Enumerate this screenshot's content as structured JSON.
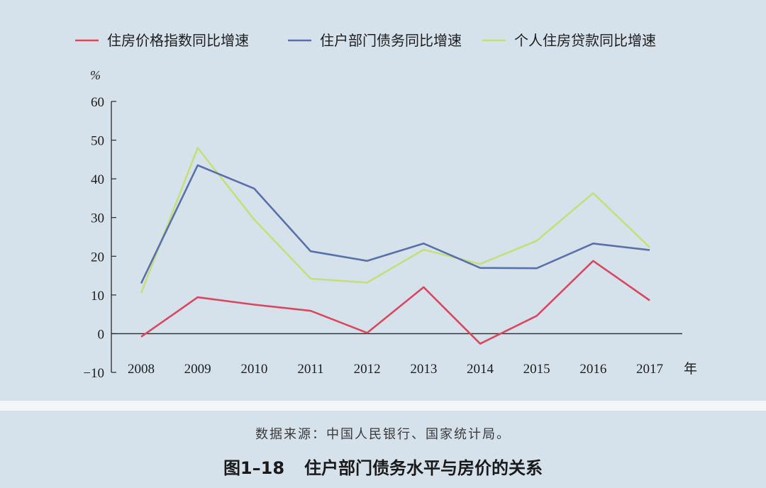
{
  "chart_data": {
    "type": "line",
    "x": [
      "2008",
      "2009",
      "2010",
      "2011",
      "2012",
      "2013",
      "2014",
      "2015",
      "2016",
      "2017"
    ],
    "y_unit": "%",
    "x_unit": "年",
    "ylim": [
      -10,
      60
    ],
    "yticks": [
      "60",
      "50",
      "40",
      "30",
      "20",
      "10",
      "0",
      "−10"
    ],
    "ytick_values": [
      60,
      50,
      40,
      30,
      20,
      10,
      0,
      -10
    ],
    "grid": false,
    "legend_position": "top",
    "series": [
      {
        "name": "住房价格指数同比增速",
        "color": "#d9485f",
        "values": [
          -0.8,
          9.4,
          7.5,
          5.9,
          0.2,
          12,
          -2.6,
          4.6,
          18.8,
          8.6
        ]
      },
      {
        "name": "住户部门债务同比增速",
        "color": "#5b6fa8",
        "values": [
          13,
          43.5,
          37.5,
          21.3,
          18.8,
          23.3,
          17,
          16.9,
          23.3,
          21.6
        ]
      },
      {
        "name": "个人住房贷款同比增速",
        "color": "#c4df7c",
        "values": [
          10.5,
          48,
          29.5,
          14.2,
          13.2,
          21.7,
          18,
          24,
          36.3,
          22.3
        ]
      }
    ]
  },
  "caption": {
    "source": "数据来源：中国人民银行、国家统计局。",
    "figure_number": "图1–18",
    "figure_title": "住户部门债务水平与房价的关系"
  }
}
